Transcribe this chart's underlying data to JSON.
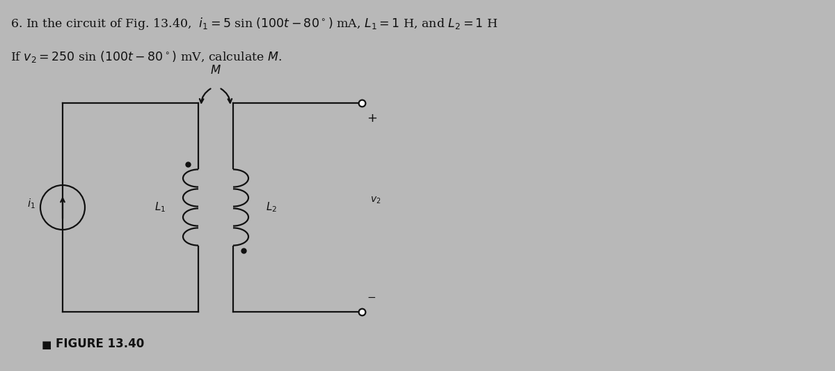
{
  "bg_color": "#b8b8b8",
  "text_color": "#111111",
  "circuit_color": "#111111",
  "figure_label": "FIGURE 13.40",
  "line1": "6. In the circuit of Fig. 13.40,  $i_1 = 5$ sin $(100t - 80^\\circ)$ mA, $L_1 = 1$ H, and $L_2 = 1$ H",
  "line2": "If $v_2 = 250$ sin $(100t - 80^\\circ)$ mV, calculate $M$."
}
